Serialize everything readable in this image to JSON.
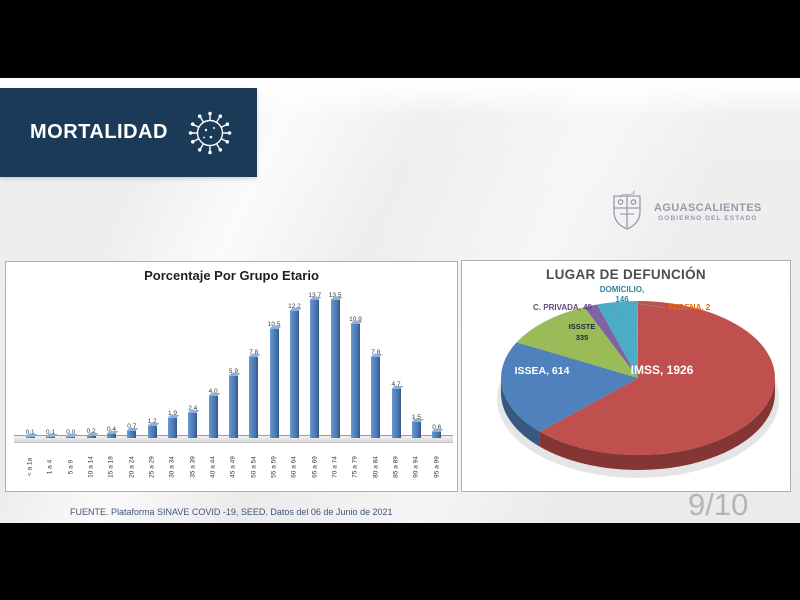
{
  "header": {
    "title": "MORTALIDAD"
  },
  "logo": {
    "name": "AGUASCALIENTES",
    "subtitle": "GOBIERNO DEL ESTADO"
  },
  "footer": {
    "source": "FUENTE. Plataforma SINAVE COVID -19, SEED. Datos del 06 de Junio de 2021",
    "page": "9/10"
  },
  "colors": {
    "header_bg": "#1B3A57",
    "panel_border": "#B0B0B0",
    "bar_blue": "#4F81BD"
  },
  "chart_data": [
    {
      "type": "bar",
      "title": "Porcentaje Por Grupo Etario",
      "categories": [
        "< a 1a",
        "1 a 4",
        "5 a 9",
        "10 a 14",
        "15 a 19",
        "20 a 24",
        "25 a 29",
        "30 a 34",
        "35 a 39",
        "40 a 44",
        "45 a 49",
        "50 a 54",
        "55 a 59",
        "60 a 64",
        "65 a 69",
        "70 a 74",
        "75 a 79",
        "80 a 84",
        "85 a 89",
        "90 a 94",
        "95 a 99"
      ],
      "values": [
        0.1,
        0.1,
        0.0,
        0.2,
        0.4,
        0.7,
        1.2,
        1.9,
        2.4,
        4.0,
        5.9,
        7.8,
        10.5,
        12.2,
        13.7,
        13.5,
        10.9,
        7.8,
        4.7,
        1.5,
        0.6
      ],
      "ylabel": "",
      "xlabel": "",
      "ylim": [
        0,
        14
      ],
      "grid": false,
      "legend": "none",
      "style": "3d-column",
      "bar_color": "#4F81BD",
      "data_labels": true
    },
    {
      "type": "pie",
      "title": "LUGAR DE DEFUNCIÓN",
      "style": "3d-pie",
      "legend": "none",
      "order": "clockwise-from-top",
      "slices": [
        {
          "name": "IMSS",
          "value": 1926,
          "color": "#C0504D",
          "text_color": "#FFFFFF",
          "callout": "IMSS, 1926"
        },
        {
          "name": "ISSEA",
          "value": 614,
          "color": "#4F81BD",
          "text_color": "#FFFFFF",
          "callout": "ISSEA, 614"
        },
        {
          "name": "ISSSTE",
          "value": 335,
          "color": "#9BBB59",
          "text_color": "#1C2A35",
          "callout": "ISSSTE 335",
          "label_lines": [
            "ISSSTE",
            "335"
          ]
        },
        {
          "name": "C. PRIVADA",
          "value": 49,
          "color": "#8064A2",
          "text_color": "#604A7B",
          "callout": "C. PRIVADA, 49"
        },
        {
          "name": "DOMICILIO",
          "value": 146,
          "color": "#4BACC6",
          "text_color": "#31859C",
          "callout": "DOMICILIO, 146",
          "label_lines": [
            "DOMICILIO,",
            "146"
          ]
        },
        {
          "name": "SEDENA",
          "value": 2,
          "color": "#F79646",
          "text_color": "#E26B0A",
          "callout": "SEDENA, 2"
        }
      ]
    }
  ]
}
